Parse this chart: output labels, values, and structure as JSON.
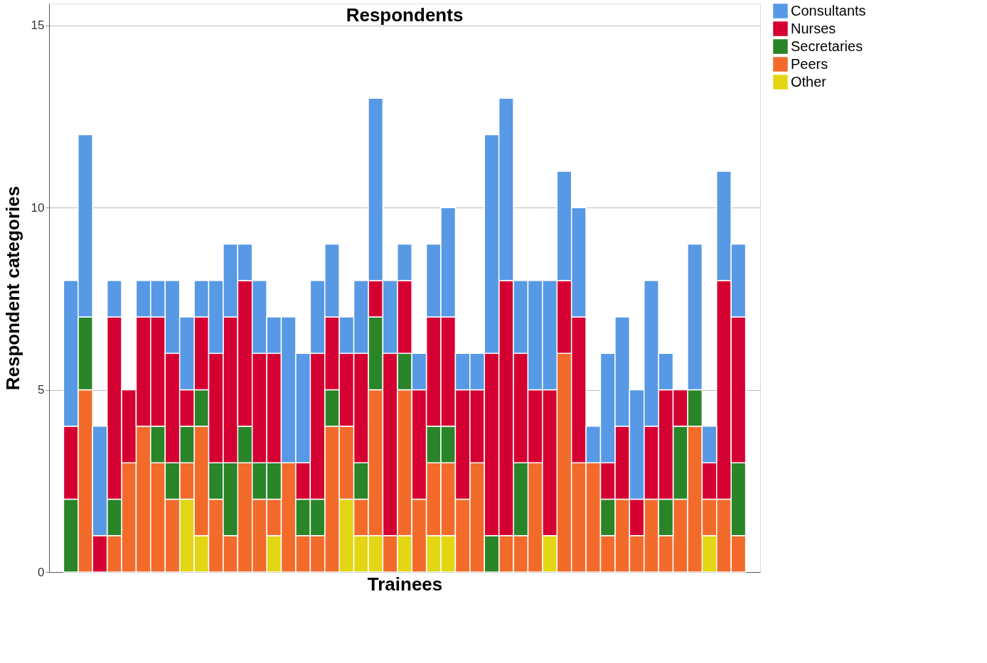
{
  "chart_data": {
    "type": "bar",
    "stacked": true,
    "title": "Respondents",
    "xlabel": "Trainees",
    "ylabel": "Respondent categories",
    "categories": [
      null,
      null,
      null,
      null,
      null,
      null,
      null,
      null,
      null,
      null,
      null,
      null,
      null,
      null,
      null,
      null,
      null,
      null,
      null,
      null,
      null,
      null,
      null,
      null,
      null,
      null,
      null,
      null,
      null,
      null,
      null,
      null,
      null,
      null,
      null,
      null,
      null,
      null,
      null,
      null,
      null,
      null,
      null,
      null,
      null,
      null,
      null
    ],
    "series": [
      {
        "name": "Other",
        "color": "#e3d614",
        "values": [
          0,
          0,
          0,
          0,
          0,
          0,
          0,
          0,
          2,
          1,
          0,
          0,
          0,
          0,
          1,
          0,
          0,
          0,
          0,
          2,
          1,
          1,
          0,
          1,
          0,
          1,
          1,
          0,
          0,
          0,
          0,
          0,
          0,
          1,
          0,
          0,
          0,
          0,
          0,
          0,
          0,
          0,
          0,
          0,
          1,
          0,
          0
        ]
      },
      {
        "name": "Peers",
        "color": "#f26b2b",
        "values": [
          0,
          5,
          0,
          1,
          3,
          4,
          3,
          2,
          1,
          3,
          2,
          1,
          3,
          2,
          1,
          3,
          1,
          1,
          4,
          2,
          1,
          4,
          1,
          4,
          2,
          2,
          2,
          2,
          3,
          0,
          1,
          1,
          3,
          0,
          6,
          3,
          3,
          1,
          2,
          1,
          2,
          1,
          2,
          4,
          1,
          2,
          1
        ]
      },
      {
        "name": "Secretaries",
        "color": "#2a8428",
        "values": [
          2,
          2,
          0,
          1,
          0,
          0,
          1,
          1,
          1,
          1,
          1,
          2,
          1,
          1,
          1,
          0,
          1,
          1,
          1,
          0,
          1,
          2,
          0,
          1,
          0,
          1,
          1,
          0,
          0,
          1,
          0,
          2,
          0,
          0,
          0,
          0,
          0,
          1,
          0,
          0,
          0,
          1,
          2,
          1,
          0,
          0,
          2
        ]
      },
      {
        "name": "Nurses",
        "color": "#d50032",
        "values": [
          2,
          0,
          1,
          5,
          2,
          3,
          3,
          3,
          1,
          2,
          3,
          4,
          4,
          3,
          3,
          0,
          1,
          4,
          2,
          2,
          3,
          1,
          5,
          2,
          3,
          3,
          3,
          3,
          2,
          5,
          7,
          3,
          2,
          4,
          2,
          4,
          0,
          1,
          2,
          1,
          2,
          3,
          1,
          0,
          1,
          6,
          4
        ]
      },
      {
        "name": "Consultants",
        "color": "#5799e4",
        "values": [
          4,
          5,
          3,
          1,
          0,
          1,
          1,
          2,
          2,
          1,
          2,
          2,
          1,
          2,
          1,
          4,
          3,
          2,
          2,
          1,
          2,
          5,
          2,
          1,
          1,
          2,
          3,
          1,
          1,
          6,
          5,
          2,
          3,
          3,
          3,
          3,
          1,
          3,
          3,
          3,
          4,
          1,
          0,
          4,
          1,
          3,
          2
        ]
      }
    ],
    "ylim": [
      0,
      15.6
    ],
    "yticks": [
      0,
      5,
      10,
      15
    ],
    "grid": "y",
    "legend": "top right",
    "tick_labels": "y"
  }
}
